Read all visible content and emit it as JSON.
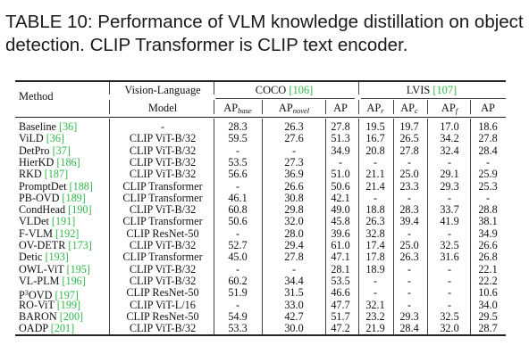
{
  "caption": "TABLE 10: Performance of VLM knowledge distillation on object detection. CLIP Transformer is CLIP text encoder.",
  "header": {
    "method": "Method",
    "vl_top": "Vision-Language",
    "vl_bottom": "Model",
    "coco": "COCO",
    "coco_cite": "[106]",
    "lvis": "LVIS",
    "lvis_cite": "[107]",
    "ap": "AP",
    "sub_base": "base",
    "sub_novel": "novel",
    "sub_r": "r",
    "sub_c": "c",
    "sub_f": "f"
  },
  "rows": [
    {
      "method": "Baseline",
      "cite": "[36]",
      "model": "-",
      "coco_base": "28.3",
      "coco_novel": "26.3",
      "coco_ap": "27.8",
      "lvis_r": "19.5",
      "lvis_c": "19.7",
      "lvis_f": "17.0",
      "lvis_ap": "18.6"
    },
    {
      "method": "ViLD",
      "cite": "[36]",
      "model": "CLIP ViT-B/32",
      "coco_base": "59.5",
      "coco_novel": "27.6",
      "coco_ap": "51.3",
      "lvis_r": "16.7",
      "lvis_c": "26.5",
      "lvis_f": "34.2",
      "lvis_ap": "27.8"
    },
    {
      "method": "DetPro",
      "cite": "[37]",
      "model": "CLIP ViT-B/32",
      "coco_base": "-",
      "coco_novel": "-",
      "coco_ap": "34.9",
      "lvis_r": "20.8",
      "lvis_c": "27.8",
      "lvis_f": "32.4",
      "lvis_ap": "28.4"
    },
    {
      "method": "HierKD",
      "cite": "[186]",
      "model": "CLIP ViT-B/32",
      "coco_base": "53.5",
      "coco_novel": "27.3",
      "coco_ap": "-",
      "lvis_r": "-",
      "lvis_c": "-",
      "lvis_f": "-",
      "lvis_ap": "-"
    },
    {
      "method": "RKD",
      "cite": "[187]",
      "model": "CLIP ViT-B/32",
      "coco_base": "56.6",
      "coco_novel": "36.9",
      "coco_ap": "51.0",
      "lvis_r": "21.1",
      "lvis_c": "25.0",
      "lvis_f": "29.1",
      "lvis_ap": "25.9"
    },
    {
      "method": "PromptDet",
      "cite": "[188]",
      "model": "CLIP Transformer",
      "coco_base": "-",
      "coco_novel": "26.6",
      "coco_ap": "50.6",
      "lvis_r": "21.4",
      "lvis_c": "23.3",
      "lvis_f": "29.3",
      "lvis_ap": "25.3"
    },
    {
      "method": "PB-OVD",
      "cite": "[189]",
      "model": "CLIP Transformer",
      "coco_base": "46.1",
      "coco_novel": "30.8",
      "coco_ap": "42.1",
      "lvis_r": "-",
      "lvis_c": "-",
      "lvis_f": "-",
      "lvis_ap": "-"
    },
    {
      "method": "CondHead",
      "cite": "[190]",
      "model": "CLIP ViT-B/32",
      "coco_base": "60.8",
      "coco_novel": "29.8",
      "coco_ap": "49.0",
      "lvis_r": "18.8",
      "lvis_c": "28.3",
      "lvis_f": "33.7",
      "lvis_ap": "28.8"
    },
    {
      "method": "VLDet",
      "cite": "[191]",
      "model": "CLIP Transformer",
      "coco_base": "50.6",
      "coco_novel": "32.0",
      "coco_ap": "45.8",
      "lvis_r": "26.3",
      "lvis_c": "39.4",
      "lvis_f": "41.9",
      "lvis_ap": "38.1"
    },
    {
      "method": "F-VLM",
      "cite": "[192]",
      "model": "CLIP ResNet-50",
      "coco_base": "-",
      "coco_novel": "28.0",
      "coco_ap": "39.6",
      "lvis_r": "32.8",
      "lvis_c": "-",
      "lvis_f": "-",
      "lvis_ap": "34.9"
    },
    {
      "method": "OV-DETR",
      "cite": "[173]",
      "model": "CLIP ViT-B/32",
      "coco_base": "52.7",
      "coco_novel": "29.4",
      "coco_ap": "61.0",
      "lvis_r": "17.4",
      "lvis_c": "25.0",
      "lvis_f": "32.5",
      "lvis_ap": "26.6"
    },
    {
      "method": "Detic",
      "cite": "[193]",
      "model": "CLIP Transformer",
      "coco_base": "45.0",
      "coco_novel": "27.8",
      "coco_ap": "47.1",
      "lvis_r": "17.8",
      "lvis_c": "26.3",
      "lvis_f": "31.6",
      "lvis_ap": "26.8"
    },
    {
      "method": "OWL-ViT",
      "cite": "[195]",
      "model": "CLIP ViT-B/32",
      "coco_base": "-",
      "coco_novel": "-",
      "coco_ap": "28.1",
      "lvis_r": "18.9",
      "lvis_c": "-",
      "lvis_f": "-",
      "lvis_ap": "22.1"
    },
    {
      "method": "VL-PLM",
      "cite": "[196]",
      "model": "CLIP ViT-B/32",
      "coco_base": "60.2",
      "coco_novel": "34.4",
      "coco_ap": "53.5",
      "lvis_r": "-",
      "lvis_c": "-",
      "lvis_f": "-",
      "lvis_ap": "22.2"
    },
    {
      "method_prefix": "P",
      "method_sup": "3",
      "method": "OVD",
      "cite": "[197]",
      "model": "CLIP ResNet-50",
      "coco_base": "51.9",
      "coco_novel": "31.5",
      "coco_ap": "46.6",
      "lvis_r": "-",
      "lvis_c": "-",
      "lvis_f": "-",
      "lvis_ap": "10.6"
    },
    {
      "method": "RO-ViT",
      "cite": "[199]",
      "model": "CLIP ViT-L/16",
      "coco_base": "-",
      "coco_novel": "33.0",
      "coco_ap": "47.7",
      "lvis_r": "32.1",
      "lvis_c": "-",
      "lvis_f": "-",
      "lvis_ap": "34.0"
    },
    {
      "method": "BARON",
      "cite": "[200]",
      "model": "CLIP ResNet-50",
      "coco_base": "54.9",
      "coco_novel": "42.7",
      "coco_ap": "51.7",
      "lvis_r": "23.2",
      "lvis_c": "29.3",
      "lvis_f": "32.5",
      "lvis_ap": "29.5"
    },
    {
      "method": "OADP",
      "cite": "[201]",
      "model": "CLIP ViT-B/32",
      "coco_base": "53.3",
      "coco_novel": "30.0",
      "coco_ap": "47.2",
      "lvis_r": "21.9",
      "lvis_c": "28.4",
      "lvis_f": "32.0",
      "lvis_ap": "28.7"
    }
  ]
}
